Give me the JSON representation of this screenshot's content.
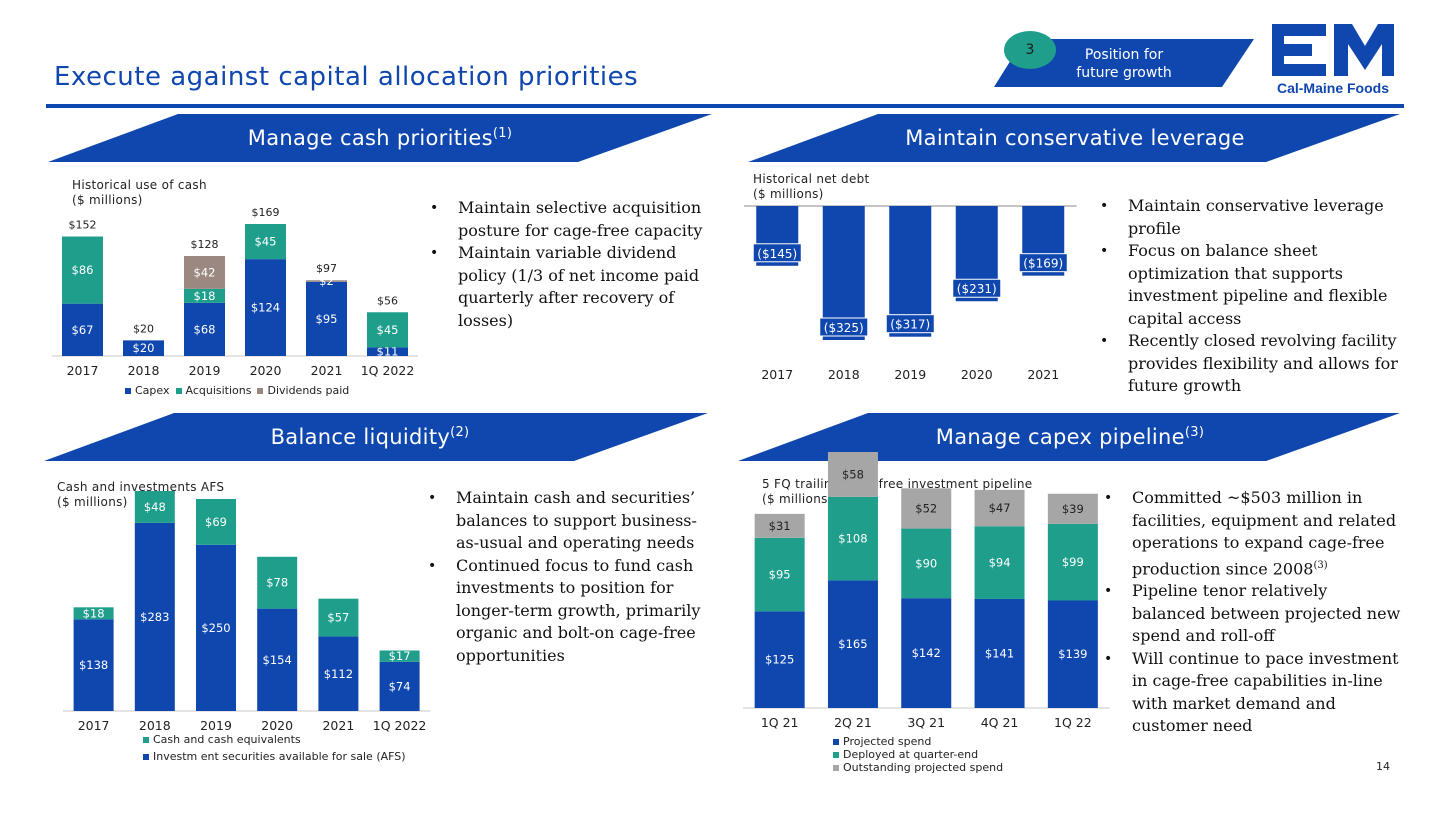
{
  "header": {
    "title": "Execute against capital allocation priorities",
    "badge_number": "3",
    "badge_text_line1": "Position for",
    "badge_text_line2": "future  growth",
    "logo_text": "Cal-Maine Foods",
    "page_number": "14"
  },
  "colors": {
    "brand_blue": "#0f47af",
    "teal": "#1f9e8c",
    "taupe": "#9b8880",
    "gray": "#a6a6a6"
  },
  "sections": {
    "cash": {
      "title": "Manage cash priorities",
      "title_sup": "(1)",
      "chart_caption_line1": "Historical  use of cash",
      "chart_caption_line2": "($ millions)",
      "bullets": [
        "Maintain selective acquisition posture for cage-free capacity",
        "Maintain variable dividend policy (1/3 of net income paid quarterly after recovery of losses)"
      ]
    },
    "leverage": {
      "title": "Maintain conservative leverage",
      "chart_caption_line1": "Historical  net debt",
      "chart_caption_line2": "($ millions)",
      "bullets": [
        "Maintain conservative leverage profile",
        "Focus on balance sheet optimization that supports investment pipeline and flexible capital access",
        "Recently closed revolving facility provides flexibility and allows for future growth"
      ]
    },
    "liquidity": {
      "title": "Balance liquidity",
      "title_sup": "(2)",
      "chart_caption_line1": "Cash and investments  AFS",
      "chart_caption_line2": "($ millions)",
      "bullets": [
        "Maintain cash and securities’ balances to support business-as-usual and operating needs",
        "Continued focus to fund cash investments to position for longer-term growth, primarily organic and bolt-on cage-free  opportunities"
      ]
    },
    "capex": {
      "title": "Manage capex pipeline",
      "title_sup": "(3)",
      "chart_caption_line1": "5 FQ trailing  cage-free investment pipeline",
      "chart_caption_line2": "($ millions)",
      "bullet1_main": "Committed ~$503 million in facilities, equipment and related operations to expand cage-free production since 2008",
      "bullet1_sup": "(3)",
      "bullets_rest": [
        "Pipeline tenor relatively balanced between projected new spend and roll-off",
        "Will continue to pace investment in cage-free capabilities in-line with market demand and customer need"
      ]
    }
  },
  "chart_data": [
    {
      "id": "use_of_cash",
      "type": "bar",
      "stacked": true,
      "categories": [
        "2017",
        "2018",
        "2019",
        "2020",
        "2021",
        "1Q 2022"
      ],
      "series": [
        {
          "name": "Capex",
          "color": "#0f47af",
          "values": [
            67,
            20,
            68,
            124,
            95,
            11
          ]
        },
        {
          "name": "Acquisitions",
          "color": "#1f9e8c",
          "values": [
            86,
            0,
            18,
            45,
            0,
            45
          ]
        },
        {
          "name": "Dividends paid",
          "color": "#9b8880",
          "values": [
            0,
            0,
            42,
            0,
            2,
            0
          ]
        }
      ],
      "segment_labels": [
        [
          "$67",
          "$20",
          "$68",
          "$124",
          "$95",
          "$11"
        ],
        [
          "$86",
          "",
          "$18",
          "$45",
          "",
          "$45"
        ],
        [
          "",
          "",
          "$42",
          "",
          "$2",
          ""
        ]
      ],
      "totals": [
        "$152",
        "$20",
        "$128",
        "$169",
        "$97",
        "$56"
      ],
      "ylim": [
        0,
        169
      ],
      "legend": "bottom"
    },
    {
      "id": "net_debt",
      "type": "bar",
      "categories": [
        "2017",
        "2018",
        "2019",
        "2020",
        "2021"
      ],
      "values": [
        -145,
        -325,
        -317,
        -231,
        -169
      ],
      "labels": [
        "($145)",
        "($325)",
        "($317)",
        "($231)",
        "($169)"
      ],
      "color": "#0f47af",
      "ylim": [
        -325,
        0
      ]
    },
    {
      "id": "cash_investments",
      "type": "bar",
      "stacked": true,
      "categories": [
        "2017",
        "2018",
        "2019",
        "2020",
        "2021",
        "1Q 2022"
      ],
      "series": [
        {
          "name": "Investment securities available for sale (AFS)",
          "color": "#0f47af",
          "values": [
            138,
            283,
            250,
            154,
            112,
            74
          ]
        },
        {
          "name": "Cash and cash equivalents",
          "color": "#1f9e8c",
          "values": [
            18,
            48,
            69,
            78,
            57,
            17
          ]
        }
      ],
      "segment_labels": [
        [
          "$138",
          "$283",
          "$250",
          "$154",
          "$112",
          "$74"
        ],
        [
          "$18",
          "$48",
          "$69",
          "$78",
          "$57",
          "$17"
        ]
      ],
      "ylim": [
        0,
        331
      ],
      "legend_entries": [
        "Cash and cash equivalents",
        "Investm ent securities available for sale (AFS)"
      ],
      "legend": "bottom"
    },
    {
      "id": "capex_pipeline",
      "type": "bar",
      "stacked": true,
      "categories": [
        "1Q 21",
        "2Q 21",
        "3Q 21",
        "4Q 21",
        "1Q 22"
      ],
      "series": [
        {
          "name": "Projected spend",
          "color": "#0f47af",
          "values": [
            125,
            165,
            142,
            141,
            139
          ]
        },
        {
          "name": "Deployed at quarter-end",
          "color": "#1f9e8c",
          "values": [
            95,
            108,
            90,
            94,
            99
          ]
        },
        {
          "name": "Outstanding projected spend",
          "color": "#a6a6a6",
          "values": [
            31,
            58,
            52,
            47,
            39
          ]
        }
      ],
      "segment_labels": [
        [
          "$125",
          "$165",
          "$142",
          "$141",
          "$139"
        ],
        [
          "$95",
          "$108",
          "$90",
          "$94",
          "$99"
        ],
        [
          "$31",
          "$58",
          "$52",
          "$47",
          "$39"
        ]
      ],
      "ylim": [
        0,
        331
      ],
      "legend": "bottom"
    }
  ]
}
